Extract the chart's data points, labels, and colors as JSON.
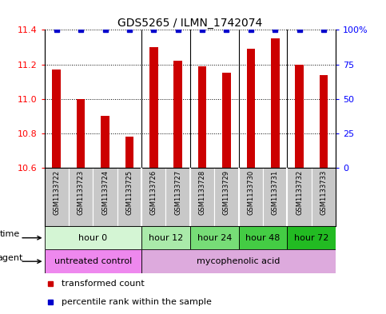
{
  "title": "GDS5265 / ILMN_1742074",
  "samples": [
    "GSM1133722",
    "GSM1133723",
    "GSM1133724",
    "GSM1133725",
    "GSM1133726",
    "GSM1133727",
    "GSM1133728",
    "GSM1133729",
    "GSM1133730",
    "GSM1133731",
    "GSM1133732",
    "GSM1133733"
  ],
  "bar_values": [
    11.17,
    11.0,
    10.9,
    10.78,
    11.3,
    11.22,
    11.19,
    11.15,
    11.29,
    11.35,
    11.2,
    11.14
  ],
  "percentile_values": [
    100,
    100,
    100,
    100,
    100,
    100,
    100,
    100,
    100,
    100,
    100,
    100
  ],
  "bar_color": "#cc0000",
  "percentile_color": "#0000cc",
  "ylim_left": [
    10.6,
    11.4
  ],
  "ylim_right": [
    0,
    100
  ],
  "yticks_left": [
    10.6,
    10.8,
    11.0,
    11.2,
    11.4
  ],
  "yticks_right": [
    0,
    25,
    50,
    75,
    100
  ],
  "ytick_labels_right": [
    "0",
    "25",
    "50",
    "75",
    "100%"
  ],
  "time_groups": [
    {
      "label": "hour 0",
      "start": 0,
      "end": 4,
      "color": "#d4f5d4"
    },
    {
      "label": "hour 12",
      "start": 4,
      "end": 6,
      "color": "#aaeaaa"
    },
    {
      "label": "hour 24",
      "start": 6,
      "end": 8,
      "color": "#77dd77"
    },
    {
      "label": "hour 48",
      "start": 8,
      "end": 10,
      "color": "#44cc44"
    },
    {
      "label": "hour 72",
      "start": 10,
      "end": 12,
      "color": "#22bb22"
    }
  ],
  "agent_groups": [
    {
      "label": "untreated control",
      "start": 0,
      "end": 4,
      "color": "#ee88ee"
    },
    {
      "label": "mycophenolic acid",
      "start": 4,
      "end": 12,
      "color": "#ddaadd"
    }
  ],
  "legend_items": [
    {
      "label": "transformed count",
      "color": "#cc0000"
    },
    {
      "label": "percentile rank within the sample",
      "color": "#0000cc"
    }
  ],
  "bar_width": 0.35,
  "base_value": 10.6,
  "sample_bg_color": "#c8c8c8",
  "group_line_color": "black",
  "title_fontsize": 10,
  "tick_fontsize": 8,
  "sample_fontsize": 6,
  "row_fontsize": 8,
  "legend_fontsize": 8
}
